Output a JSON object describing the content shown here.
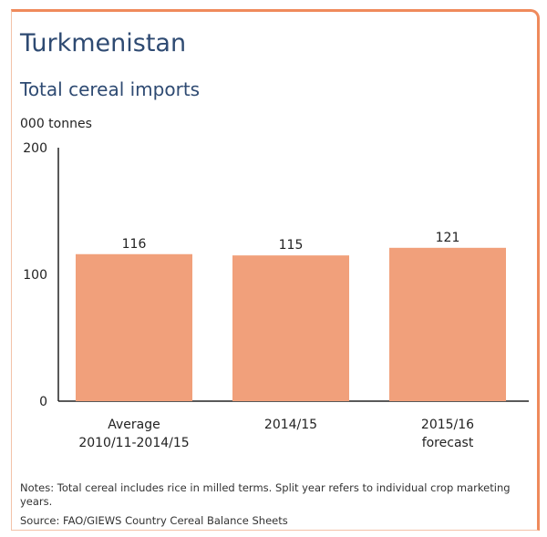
{
  "header": {
    "country": "Turkmenistan",
    "subtitle": "Total cereal imports",
    "unit": "000 tonnes"
  },
  "footer": {
    "notes": "Notes: Total cereal includes rice in milled terms. Split year refers to individual crop marketing years.",
    "source": "Source: FAO/GIEWS Country Cereal Balance Sheets"
  },
  "colors": {
    "bar": "#f1a07b",
    "border": "#ef8a5c",
    "title": "#2e4a72"
  },
  "chart_data": {
    "type": "bar",
    "title": "Total cereal imports",
    "ylabel": "000 tonnes",
    "xlabel": "",
    "categories": [
      [
        "Average",
        "2010/11-2014/15"
      ],
      [
        "2014/15"
      ],
      [
        "2015/16",
        "forecast"
      ]
    ],
    "values": [
      116,
      115,
      121
    ],
    "ylim": [
      0,
      200
    ],
    "yticks": [
      0,
      100,
      200
    ],
    "grid": false
  }
}
